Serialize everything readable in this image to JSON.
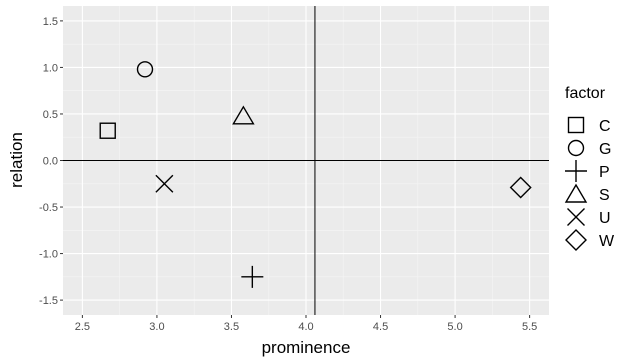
{
  "chart_data": {
    "type": "scatter",
    "xlabel": "prominence",
    "ylabel": "relation",
    "xlim": [
      2.37,
      5.63
    ],
    "ylim": [
      -1.66,
      1.66
    ],
    "x_ticks": [
      2.5,
      3.0,
      3.5,
      4.0,
      4.5,
      5.0,
      5.5
    ],
    "x_tick_labels": [
      "2.5",
      "3.0",
      "3.5",
      "4.0",
      "4.5",
      "5.0",
      "5.5"
    ],
    "y_ticks": [
      1.5,
      1.0,
      0.5,
      0.0,
      -0.5,
      -1.0,
      -1.5
    ],
    "y_tick_labels": [
      "1.5",
      "1.0",
      "0.5",
      "0.0",
      "-0.5",
      "-1.0",
      "-1.5"
    ],
    "reference_lines": {
      "vertical_x": 4.06,
      "horizontal_y": 0.0
    },
    "grid": true,
    "legend": {
      "title": "factor",
      "placement": "right"
    },
    "points": [
      {
        "factor": "C",
        "shape": "square",
        "x": 2.67,
        "y": 0.32
      },
      {
        "factor": "G",
        "shape": "circle",
        "x": 2.92,
        "y": 0.98
      },
      {
        "factor": "P",
        "shape": "plus",
        "x": 3.64,
        "y": -1.25
      },
      {
        "factor": "S",
        "shape": "triangle",
        "x": 3.58,
        "y": 0.48
      },
      {
        "factor": "U",
        "shape": "cross",
        "x": 3.05,
        "y": -0.25
      },
      {
        "factor": "W",
        "shape": "diamond",
        "x": 5.44,
        "y": -0.29
      }
    ],
    "colors": {
      "panel_background": "#ebebeb",
      "grid_major": "#ffffff",
      "grid_minor": "#f5f5f5",
      "reference_line": "#000000",
      "marker": "#000000"
    }
  }
}
